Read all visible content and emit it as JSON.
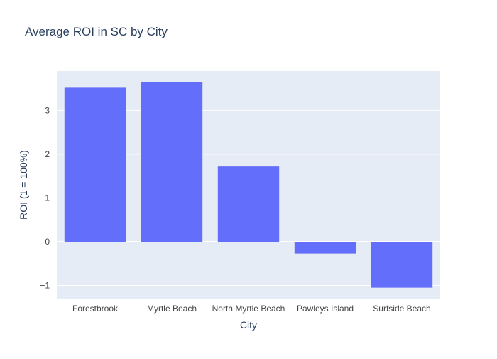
{
  "chart_data": {
    "type": "bar",
    "title": "Average ROI in SC by City",
    "xlabel": "City",
    "ylabel": "ROI (1 = 100%)",
    "categories": [
      "Forestbrook",
      "Myrtle Beach",
      "North Myrtle Beach",
      "Pawleys Island",
      "Surfside Beach"
    ],
    "values": [
      3.52,
      3.65,
      1.72,
      -0.27,
      -1.05
    ],
    "ylim": [
      -1.3,
      3.9
    ],
    "yticks": [
      -1,
      0,
      1,
      2,
      3
    ],
    "ytick_labels": [
      "−1",
      "0",
      "1",
      "2",
      "3"
    ],
    "grid": true,
    "colors": {
      "bar": "#636efa",
      "plot_bg": "#e5ecf6",
      "grid": "#ffffff",
      "text": "#2a3f5f",
      "tick_text": "#444444"
    }
  }
}
